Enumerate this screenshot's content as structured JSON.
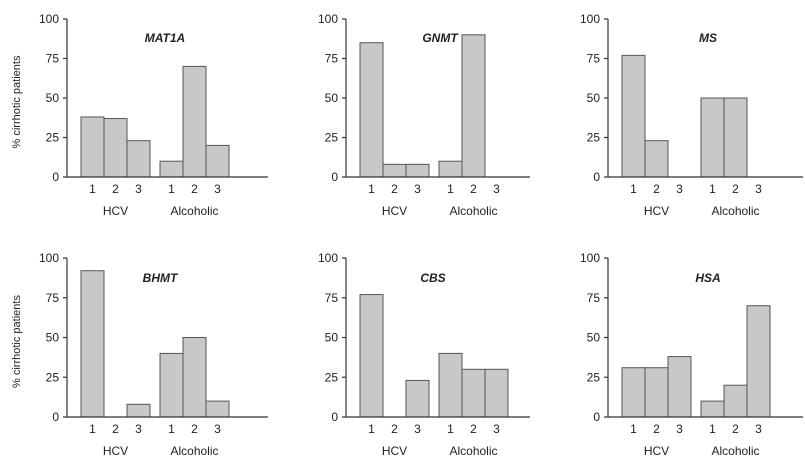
{
  "figure": {
    "ylabel": "% cirrhotic patients",
    "bar_color": "#c8c8c8",
    "bar_stroke": "#555555"
  },
  "chart_data": [
    {
      "type": "bar",
      "title": "MAT1A",
      "ylabel": "% cirrhotic patients",
      "ylim": [
        0,
        100
      ],
      "yticks": [
        "0",
        "25",
        "50",
        "75",
        "100"
      ],
      "groups": [
        {
          "name": "HCV",
          "categories": [
            "1",
            "2",
            "3"
          ],
          "values": [
            38,
            37,
            23
          ]
        },
        {
          "name": "Alcoholic",
          "categories": [
            "1",
            "2",
            "3"
          ],
          "values": [
            10,
            70,
            20
          ]
        }
      ]
    },
    {
      "type": "bar",
      "title": "GNMT",
      "ylabel": "",
      "ylim": [
        0,
        100
      ],
      "yticks": [
        "0",
        "25",
        "50",
        "75",
        "100"
      ],
      "groups": [
        {
          "name": "HCV",
          "categories": [
            "1",
            "2",
            "3"
          ],
          "values": [
            85,
            8,
            8
          ]
        },
        {
          "name": "Alcoholic",
          "categories": [
            "1",
            "2",
            "3"
          ],
          "values": [
            10,
            90,
            0
          ]
        }
      ]
    },
    {
      "type": "bar",
      "title": "MS",
      "ylabel": "",
      "ylim": [
        0,
        100
      ],
      "yticks": [
        "0",
        "25",
        "50",
        "75",
        "100"
      ],
      "groups": [
        {
          "name": "HCV",
          "categories": [
            "1",
            "2",
            "3"
          ],
          "values": [
            77,
            23,
            0
          ]
        },
        {
          "name": "Alcoholic",
          "categories": [
            "1",
            "2",
            "3"
          ],
          "values": [
            50,
            50,
            0
          ]
        }
      ]
    },
    {
      "type": "bar",
      "title": "BHMT",
      "ylabel": "% cirrhotic patients",
      "ylim": [
        0,
        100
      ],
      "yticks": [
        "0",
        "25",
        "50",
        "75",
        "100"
      ],
      "groups": [
        {
          "name": "HCV",
          "categories": [
            "1",
            "2",
            "3"
          ],
          "values": [
            92,
            0,
            8
          ]
        },
        {
          "name": "Alcoholic",
          "categories": [
            "1",
            "2",
            "3"
          ],
          "values": [
            40,
            50,
            10
          ]
        }
      ]
    },
    {
      "type": "bar",
      "title": "CBS",
      "ylabel": "",
      "ylim": [
        0,
        100
      ],
      "yticks": [
        "0",
        "25",
        "50",
        "75",
        "100"
      ],
      "groups": [
        {
          "name": "HCV",
          "categories": [
            "1",
            "2",
            "3"
          ],
          "values": [
            77,
            0,
            23
          ]
        },
        {
          "name": "Alcoholic",
          "categories": [
            "1",
            "2",
            "3"
          ],
          "values": [
            40,
            30,
            30
          ]
        }
      ]
    },
    {
      "type": "bar",
      "title": "HSA",
      "ylabel": "",
      "ylim": [
        0,
        100
      ],
      "yticks": [
        "0",
        "25",
        "50",
        "75",
        "100"
      ],
      "groups": [
        {
          "name": "HCV",
          "categories": [
            "1",
            "2",
            "3"
          ],
          "values": [
            31,
            31,
            38
          ]
        },
        {
          "name": "Alcoholic",
          "categories": [
            "1",
            "2",
            "3"
          ],
          "values": [
            10,
            20,
            70
          ]
        }
      ]
    }
  ]
}
